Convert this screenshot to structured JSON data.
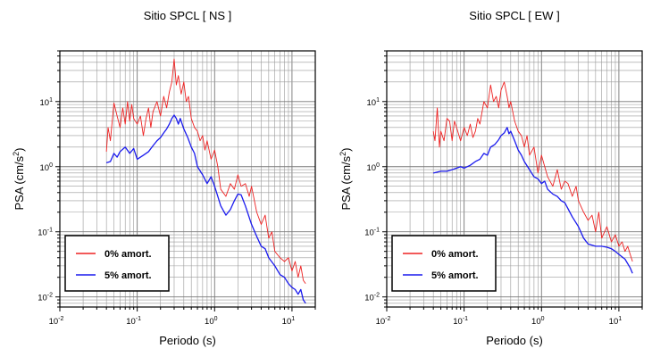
{
  "colors": {
    "red": "#ee2222",
    "blue": "#1a1aee"
  },
  "chart_data": [
    {
      "type": "line",
      "title": "Sitio SPCL [ NS ]",
      "xlabel": "Periodo (s)",
      "ylabel_base": "PSA (cm/s",
      "ylabel_sup": "2",
      "ylabel_close": ")",
      "x_scale": "log",
      "y_scale": "log",
      "xlim": [
        0.01,
        20
      ],
      "ylim": [
        0.007,
        60
      ],
      "grid": true,
      "legend_position": "lower-left",
      "x_ticks": [
        {
          "base": "10",
          "exp": "-2",
          "value": 0.01
        },
        {
          "base": "10",
          "exp": "-1",
          "value": 0.1
        },
        {
          "base": "10",
          "exp": "0",
          "value": 1
        },
        {
          "base": "10",
          "exp": "1",
          "value": 10
        }
      ],
      "y_ticks": [
        {
          "base": "10",
          "exp": "-2",
          "value": 0.01
        },
        {
          "base": "10",
          "exp": "-1",
          "value": 0.1
        },
        {
          "base": "10",
          "exp": "0",
          "value": 1
        },
        {
          "base": "10",
          "exp": "1",
          "value": 10
        }
      ],
      "series": [
        {
          "name": "0% amort.",
          "color": "#ee2222",
          "x": [
            0.04,
            0.042,
            0.045,
            0.05,
            0.055,
            0.06,
            0.065,
            0.07,
            0.075,
            0.08,
            0.085,
            0.09,
            0.1,
            0.11,
            0.12,
            0.13,
            0.14,
            0.15,
            0.16,
            0.18,
            0.2,
            0.22,
            0.24,
            0.26,
            0.28,
            0.3,
            0.32,
            0.34,
            0.37,
            0.4,
            0.43,
            0.46,
            0.5,
            0.55,
            0.6,
            0.65,
            0.7,
            0.75,
            0.8,
            0.9,
            1.0,
            1.1,
            1.2,
            1.4,
            1.6,
            1.8,
            2.0,
            2.2,
            2.5,
            2.8,
            3.0,
            3.5,
            4.0,
            4.5,
            5.0,
            5.5,
            6.0,
            7.0,
            8.0,
            9.0,
            10.0,
            11.0,
            12.0,
            13.0,
            14.0,
            15.0
          ],
          "y": [
            1.7,
            4.0,
            2.5,
            9.5,
            6.0,
            4.0,
            8.0,
            4.5,
            10.0,
            5.0,
            9.0,
            5.5,
            4.5,
            6.0,
            3.0,
            5.5,
            8.0,
            4.0,
            7.0,
            10.0,
            6.0,
            12.0,
            8.0,
            14.0,
            20.0,
            45.0,
            18.0,
            25.0,
            13.0,
            20.0,
            10.0,
            12.0,
            5.5,
            4.0,
            3.5,
            2.5,
            3.0,
            1.8,
            2.5,
            1.3,
            1.8,
            1.0,
            0.45,
            0.35,
            0.55,
            0.45,
            0.75,
            0.5,
            0.55,
            0.35,
            0.5,
            0.2,
            0.13,
            0.18,
            0.08,
            0.1,
            0.05,
            0.04,
            0.035,
            0.04,
            0.025,
            0.035,
            0.02,
            0.03,
            0.018,
            0.016
          ]
        },
        {
          "name": "5% amort.",
          "color": "#1a1aee",
          "x": [
            0.04,
            0.045,
            0.05,
            0.055,
            0.06,
            0.07,
            0.08,
            0.09,
            0.1,
            0.12,
            0.14,
            0.16,
            0.18,
            0.2,
            0.22,
            0.24,
            0.26,
            0.28,
            0.3,
            0.32,
            0.34,
            0.36,
            0.4,
            0.45,
            0.5,
            0.55,
            0.6,
            0.7,
            0.8,
            0.9,
            1.0,
            1.1,
            1.2,
            1.4,
            1.6,
            1.8,
            2.0,
            2.2,
            2.5,
            3.0,
            3.5,
            4.0,
            4.5,
            5.0,
            6.0,
            7.0,
            8.0,
            9.0,
            10.0,
            11.0,
            12.0,
            13.0,
            14.0,
            15.0
          ],
          "y": [
            1.15,
            1.2,
            1.6,
            1.4,
            1.7,
            2.0,
            1.6,
            1.9,
            1.3,
            1.5,
            1.7,
            2.1,
            2.5,
            2.8,
            3.3,
            3.8,
            4.5,
            5.5,
            6.2,
            5.5,
            4.5,
            5.5,
            3.8,
            2.8,
            2.0,
            1.6,
            1.0,
            0.75,
            0.55,
            0.7,
            0.5,
            0.35,
            0.25,
            0.18,
            0.22,
            0.3,
            0.38,
            0.37,
            0.25,
            0.13,
            0.085,
            0.06,
            0.055,
            0.04,
            0.03,
            0.022,
            0.02,
            0.016,
            0.014,
            0.013,
            0.011,
            0.013,
            0.009,
            0.008
          ]
        }
      ]
    },
    {
      "type": "line",
      "title": "Sitio SPCL [ EW ]",
      "xlabel": "Periodo (s)",
      "ylabel_base": "PSA (cm/s",
      "ylabel_sup": "2",
      "ylabel_close": ")",
      "x_scale": "log",
      "y_scale": "log",
      "xlim": [
        0.01,
        20
      ],
      "ylim": [
        0.007,
        60
      ],
      "grid": true,
      "legend_position": "lower-left",
      "x_ticks": [
        {
          "base": "10",
          "exp": "-2",
          "value": 0.01
        },
        {
          "base": "10",
          "exp": "-1",
          "value": 0.1
        },
        {
          "base": "10",
          "exp": "0",
          "value": 1
        },
        {
          "base": "10",
          "exp": "1",
          "value": 10
        }
      ],
      "y_ticks": [
        {
          "base": "10",
          "exp": "-2",
          "value": 0.01
        },
        {
          "base": "10",
          "exp": "-1",
          "value": 0.1
        },
        {
          "base": "10",
          "exp": "0",
          "value": 1
        },
        {
          "base": "10",
          "exp": "1",
          "value": 10
        }
      ],
      "series": [
        {
          "name": "0% amort.",
          "color": "#ee2222",
          "x": [
            0.04,
            0.042,
            0.045,
            0.048,
            0.05,
            0.055,
            0.06,
            0.065,
            0.07,
            0.075,
            0.08,
            0.09,
            0.1,
            0.11,
            0.12,
            0.13,
            0.14,
            0.15,
            0.16,
            0.18,
            0.2,
            0.22,
            0.24,
            0.26,
            0.28,
            0.3,
            0.33,
            0.36,
            0.38,
            0.4,
            0.45,
            0.5,
            0.55,
            0.6,
            0.65,
            0.7,
            0.8,
            0.9,
            1.0,
            1.1,
            1.2,
            1.4,
            1.6,
            1.8,
            2.0,
            2.2,
            2.5,
            2.8,
            3.0,
            3.5,
            4.0,
            4.5,
            5.0,
            5.5,
            6.0,
            7.0,
            8.0,
            9.0,
            10.0,
            11.0,
            12.0,
            13.0,
            14.0,
            15.0
          ],
          "y": [
            3.5,
            2.5,
            8.0,
            2.0,
            3.5,
            2.5,
            5.5,
            5.0,
            2.5,
            5.0,
            4.0,
            2.5,
            4.0,
            3.0,
            4.5,
            2.8,
            3.5,
            5.5,
            4.5,
            10.0,
            8.0,
            18.0,
            10.0,
            12.0,
            8.0,
            15.0,
            20.0,
            12.0,
            8.0,
            10.0,
            5.0,
            3.5,
            3.0,
            2.0,
            3.0,
            1.5,
            2.0,
            0.8,
            1.5,
            1.0,
            0.7,
            0.5,
            0.9,
            0.45,
            0.6,
            0.55,
            0.35,
            0.5,
            0.3,
            0.2,
            0.15,
            0.18,
            0.1,
            0.2,
            0.08,
            0.12,
            0.07,
            0.09,
            0.06,
            0.07,
            0.05,
            0.06,
            0.045,
            0.035
          ]
        },
        {
          "name": "5% amort.",
          "color": "#1a1aee",
          "x": [
            0.04,
            0.05,
            0.06,
            0.07,
            0.08,
            0.09,
            0.1,
            0.12,
            0.14,
            0.16,
            0.18,
            0.2,
            0.22,
            0.25,
            0.28,
            0.3,
            0.33,
            0.36,
            0.38,
            0.4,
            0.45,
            0.5,
            0.55,
            0.6,
            0.7,
            0.8,
            0.9,
            1.0,
            1.1,
            1.2,
            1.4,
            1.6,
            1.8,
            2.0,
            2.5,
            3.0,
            3.5,
            4.0,
            5.0,
            6.0,
            7.0,
            8.0,
            9.0,
            10.0,
            12.0,
            14.0,
            15.0
          ],
          "y": [
            0.8,
            0.85,
            0.85,
            0.9,
            0.95,
            1.0,
            0.95,
            1.05,
            1.2,
            1.3,
            1.6,
            1.5,
            2.0,
            2.2,
            2.6,
            3.0,
            3.3,
            4.0,
            3.2,
            3.5,
            2.5,
            1.8,
            1.5,
            1.2,
            0.9,
            0.7,
            0.65,
            0.55,
            0.6,
            0.45,
            0.38,
            0.35,
            0.3,
            0.28,
            0.17,
            0.12,
            0.08,
            0.065,
            0.06,
            0.06,
            0.058,
            0.055,
            0.05,
            0.045,
            0.038,
            0.028,
            0.023
          ]
        }
      ]
    }
  ]
}
